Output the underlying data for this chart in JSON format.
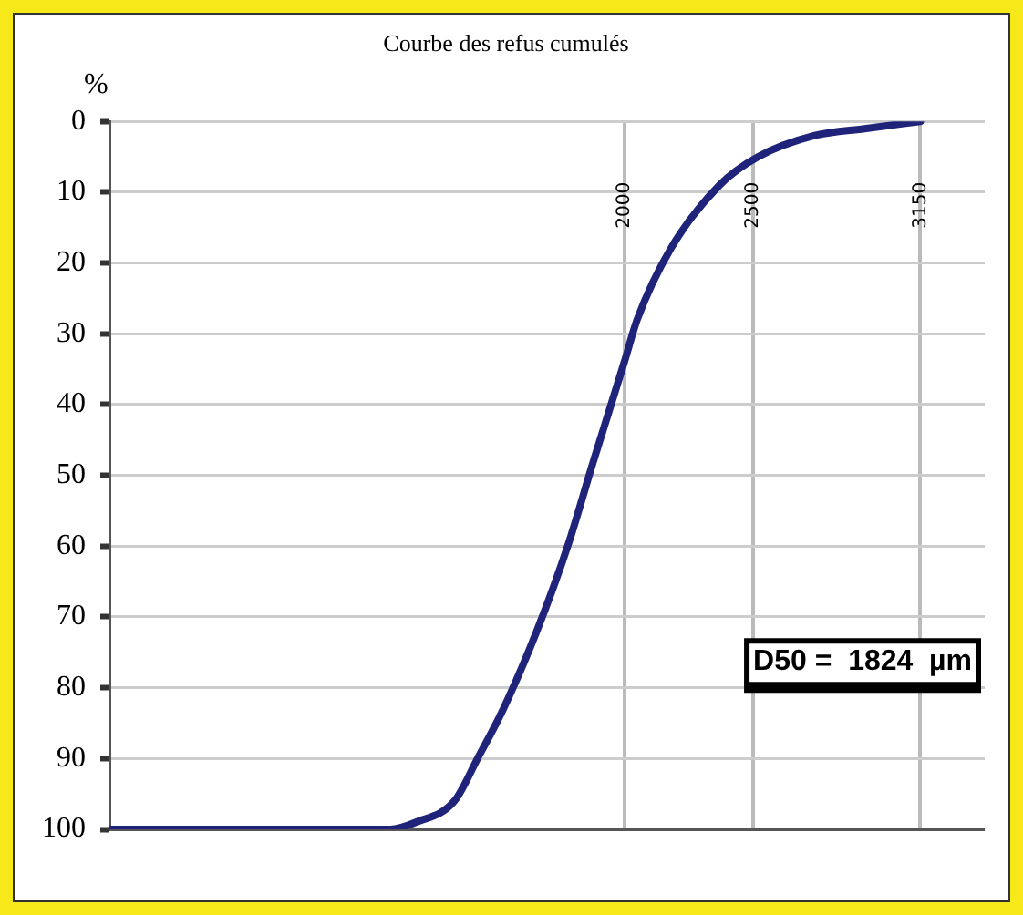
{
  "chart_data": {
    "type": "line",
    "title": "Courbe des refus cumulés",
    "ylabel": "%",
    "x": [
      0,
      1090,
      1190,
      1340,
      1430,
      1530,
      1660,
      1780,
      1880,
      2000,
      2050,
      2180,
      2370,
      2520,
      2740,
      2940,
      3150
    ],
    "series": [
      {
        "color": "#1f237a",
        "values": [
          100,
          100,
          99,
          96,
          90,
          83,
          72,
          60,
          48,
          34,
          28,
          18,
          9,
          5,
          2,
          1,
          0
        ]
      }
    ],
    "xlim": [
      0,
      3400
    ],
    "xticks": [
      2000,
      2500,
      3150
    ],
    "ylim": [
      100,
      0
    ],
    "yticks": [
      0,
      10,
      20,
      30,
      40,
      50,
      60,
      70,
      80,
      90,
      100
    ],
    "grid": true,
    "legend": false,
    "marker": "none",
    "line_style": "solid",
    "annotations": [
      "D50 =  1824  µm"
    ]
  }
}
